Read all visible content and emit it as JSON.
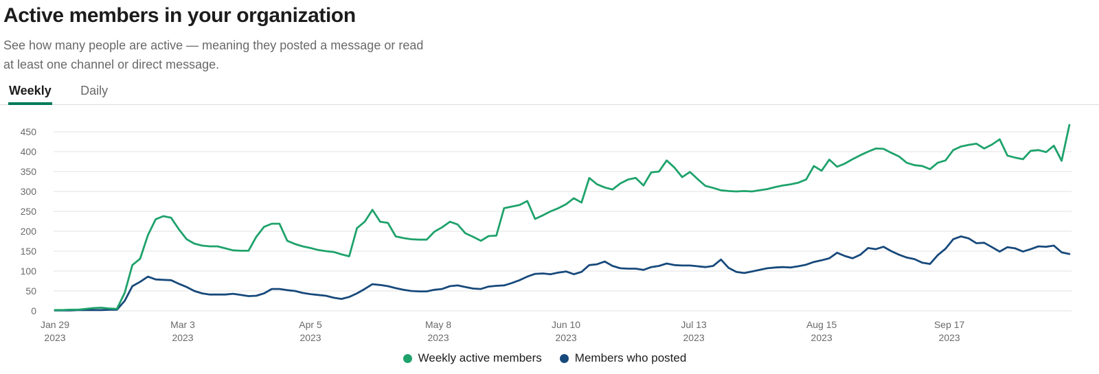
{
  "header": {
    "title": "Active members in your organization",
    "subtitle_line1": "See how many people are active — meaning they posted a message or read",
    "subtitle_line2": "at least one channel or direct message."
  },
  "tabs": [
    {
      "label": "Weekly",
      "active": true
    },
    {
      "label": "Daily",
      "active": false
    }
  ],
  "colors": {
    "title_text": "#1d1c1d",
    "muted_text": "#696969",
    "tab_active_underline": "#007a5a",
    "tab_border": "#dcdcdc",
    "gridline": "#e8e8e8",
    "series_green": "#1ea26b",
    "series_navy": "#17497b"
  },
  "chart_data": {
    "type": "line",
    "title": "Active members in your organization",
    "xlabel": "",
    "ylabel": "",
    "ylim": [
      0,
      500
    ],
    "grid": "horizontal",
    "legend_position": "bottom",
    "x_start_date": "Jan 29, 2023",
    "step_days": 2,
    "x_range_days": [
      0,
      262
    ],
    "y_ticks": [
      0,
      50,
      100,
      150,
      200,
      250,
      300,
      350,
      400,
      450
    ],
    "x_ticks": [
      {
        "day": 0,
        "label": "Jan 29",
        "year": "2023"
      },
      {
        "day": 33,
        "label": "Mar 3",
        "year": "2023"
      },
      {
        "day": 66,
        "label": "Apr 5",
        "year": "2023"
      },
      {
        "day": 99,
        "label": "May 8",
        "year": "2023"
      },
      {
        "day": 132,
        "label": "Jun 10",
        "year": "2023"
      },
      {
        "day": 165,
        "label": "Jul 13",
        "year": "2023"
      },
      {
        "day": 198,
        "label": "Aug 15",
        "year": "2023"
      },
      {
        "day": 231,
        "label": "Sep 17",
        "year": "2023"
      }
    ],
    "series": [
      {
        "name": "Weekly active members",
        "color": "#1ea26b",
        "values": [
          2,
          2,
          3,
          3,
          5,
          7,
          8,
          6,
          5,
          45,
          115,
          131,
          190,
          230,
          238,
          234,
          205,
          180,
          169,
          164,
          162,
          162,
          157,
          152,
          151,
          151,
          186,
          211,
          219,
          219,
          176,
          168,
          162,
          158,
          153,
          150,
          148,
          142,
          137,
          208,
          224,
          254,
          224,
          221,
          187,
          183,
          180,
          179,
          179,
          199,
          210,
          224,
          217,
          195,
          186,
          176,
          188,
          189,
          258,
          262,
          266,
          276,
          231,
          240,
          250,
          258,
          268,
          283,
          272,
          334,
          318,
          310,
          305,
          320,
          330,
          334,
          315,
          348,
          350,
          378,
          360,
          336,
          349,
          331,
          314,
          309,
          303,
          301,
          300,
          301,
          300,
          303,
          306,
          311,
          315,
          318,
          322,
          330,
          364,
          352,
          380,
          362,
          370,
          381,
          391,
          400,
          408,
          407,
          397,
          388,
          372,
          366,
          364,
          356,
          372,
          378,
          404,
          413,
          417,
          420,
          408,
          418,
          431,
          390,
          385,
          381,
          402,
          404,
          399,
          415,
          377,
          467
        ]
      },
      {
        "name": "Members who posted",
        "color": "#17497b",
        "values": [
          1,
          1,
          1,
          2,
          2,
          2,
          2,
          3,
          3,
          25,
          62,
          73,
          86,
          79,
          78,
          77,
          68,
          60,
          50,
          44,
          41,
          41,
          41,
          43,
          40,
          37,
          38,
          44,
          55,
          55,
          52,
          50,
          45,
          42,
          40,
          38,
          33,
          30,
          35,
          44,
          55,
          67,
          65,
          62,
          57,
          53,
          50,
          49,
          49,
          53,
          55,
          62,
          64,
          60,
          56,
          55,
          61,
          63,
          64,
          70,
          77,
          86,
          93,
          94,
          92,
          96,
          99,
          92,
          98,
          115,
          117,
          124,
          113,
          107,
          106,
          106,
          103,
          110,
          113,
          119,
          115,
          114,
          114,
          112,
          110,
          113,
          129,
          108,
          98,
          95,
          99,
          103,
          107,
          109,
          110,
          109,
          112,
          116,
          123,
          127,
          132,
          146,
          138,
          132,
          141,
          158,
          155,
          161,
          150,
          141,
          134,
          130,
          121,
          118,
          140,
          156,
          180,
          187,
          182,
          170,
          171,
          160,
          149,
          160,
          157,
          149,
          155,
          162,
          161,
          164,
          147,
          143
        ]
      }
    ]
  }
}
